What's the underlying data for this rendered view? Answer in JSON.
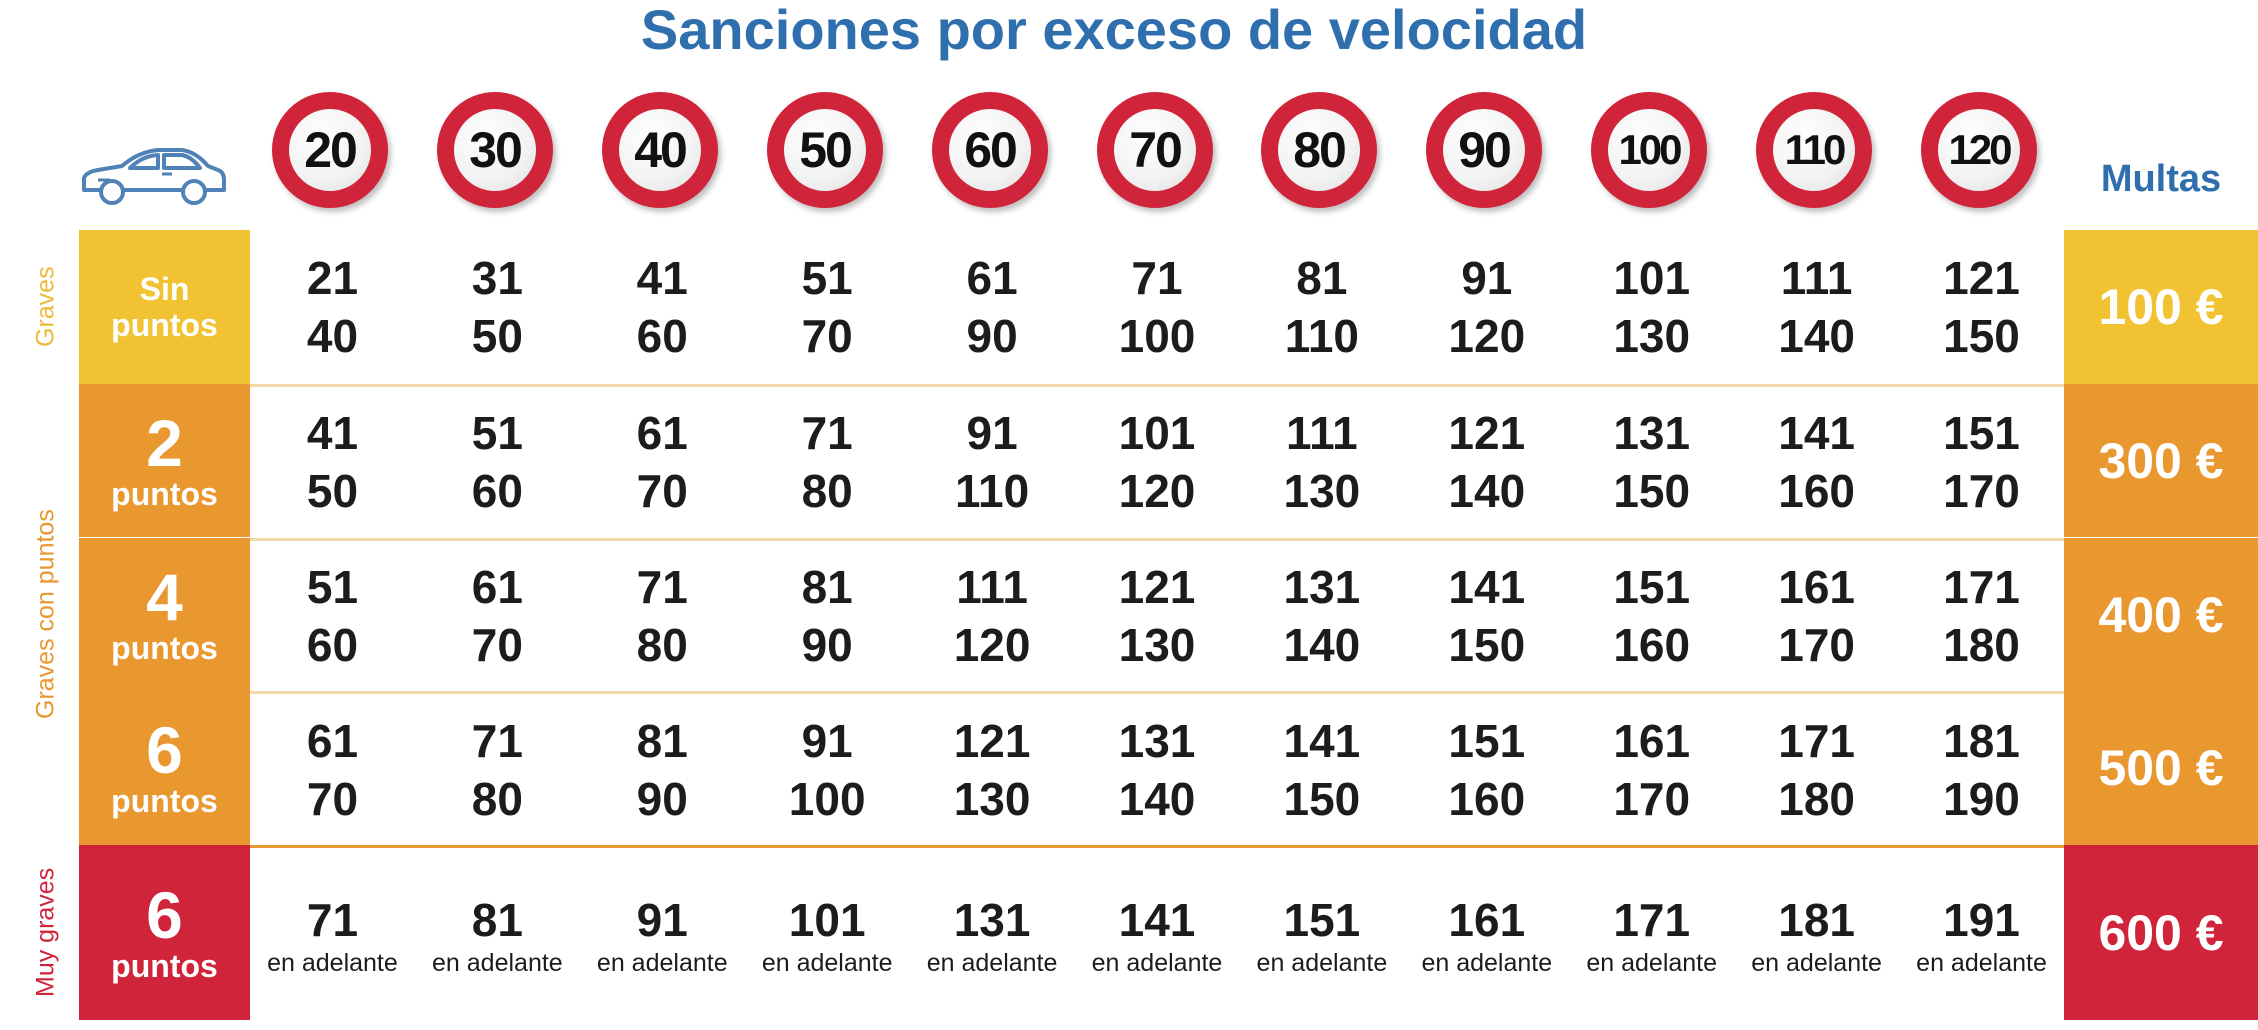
{
  "title": "Sanciones por exceso de velocidad",
  "multas_label": "Multas",
  "speed_limits": [
    "20",
    "30",
    "40",
    "50",
    "60",
    "70",
    "80",
    "90",
    "100",
    "110",
    "120"
  ],
  "categories": {
    "graves": "Graves",
    "graves_con_puntos": "Graves con puntos",
    "muy_graves": "Muy graves"
  },
  "rows": [
    {
      "label_top": "Sin",
      "label_bottom": "puntos",
      "fine": "100 €",
      "color": "#f1c232",
      "ranges": [
        [
          "21",
          "40"
        ],
        [
          "31",
          "50"
        ],
        [
          "41",
          "60"
        ],
        [
          "51",
          "70"
        ],
        [
          "61",
          "90"
        ],
        [
          "71",
          "100"
        ],
        [
          "81",
          "110"
        ],
        [
          "91",
          "120"
        ],
        [
          "101",
          "130"
        ],
        [
          "111",
          "140"
        ],
        [
          "121",
          "150"
        ]
      ]
    },
    {
      "label_top": "2",
      "label_bottom": "puntos",
      "fine": "300 €",
      "color": "#e9972f",
      "ranges": [
        [
          "41",
          "50"
        ],
        [
          "51",
          "60"
        ],
        [
          "61",
          "70"
        ],
        [
          "71",
          "80"
        ],
        [
          "91",
          "110"
        ],
        [
          "101",
          "120"
        ],
        [
          "111",
          "130"
        ],
        [
          "121",
          "140"
        ],
        [
          "131",
          "150"
        ],
        [
          "141",
          "160"
        ],
        [
          "151",
          "170"
        ]
      ]
    },
    {
      "label_top": "4",
      "label_bottom": "puntos",
      "fine": "400 €",
      "color": "#e9972f",
      "ranges": [
        [
          "51",
          "60"
        ],
        [
          "61",
          "70"
        ],
        [
          "71",
          "80"
        ],
        [
          "81",
          "90"
        ],
        [
          "111",
          "120"
        ],
        [
          "121",
          "130"
        ],
        [
          "131",
          "140"
        ],
        [
          "141",
          "150"
        ],
        [
          "151",
          "160"
        ],
        [
          "161",
          "170"
        ],
        [
          "171",
          "180"
        ]
      ]
    },
    {
      "label_top": "6",
      "label_bottom": "puntos",
      "fine": "500 €",
      "color": "#e9972f",
      "ranges": [
        [
          "61",
          "70"
        ],
        [
          "71",
          "80"
        ],
        [
          "81",
          "90"
        ],
        [
          "91",
          "100"
        ],
        [
          "121",
          "130"
        ],
        [
          "131",
          "140"
        ],
        [
          "141",
          "150"
        ],
        [
          "151",
          "160"
        ],
        [
          "161",
          "170"
        ],
        [
          "171",
          "180"
        ],
        [
          "181",
          "190"
        ]
      ]
    },
    {
      "label_top": "6",
      "label_bottom": "puntos",
      "fine": "600 €",
      "color": "#d0243b",
      "ranges": [
        [
          "71",
          "en adelante"
        ],
        [
          "81",
          "en adelante"
        ],
        [
          "91",
          "en adelante"
        ],
        [
          "101",
          "en adelante"
        ],
        [
          "131",
          "en adelante"
        ],
        [
          "141",
          "en adelante"
        ],
        [
          "151",
          "en adelante"
        ],
        [
          "161",
          "en adelante"
        ],
        [
          "171",
          "en adelante"
        ],
        [
          "181",
          "en adelante"
        ],
        [
          "191",
          "en adelante"
        ]
      ]
    }
  ],
  "colors": {
    "title_blue": "#2f6fad",
    "yellow": "#f1c232",
    "orange": "#e9972f",
    "red": "#d0243b",
    "graves_text": "#f0b83a",
    "graves_con_puntos_text": "#e9972f",
    "muy_graves_text": "#d0243b"
  },
  "icons": [
    "car-icon",
    "speed-limit-sign"
  ]
}
